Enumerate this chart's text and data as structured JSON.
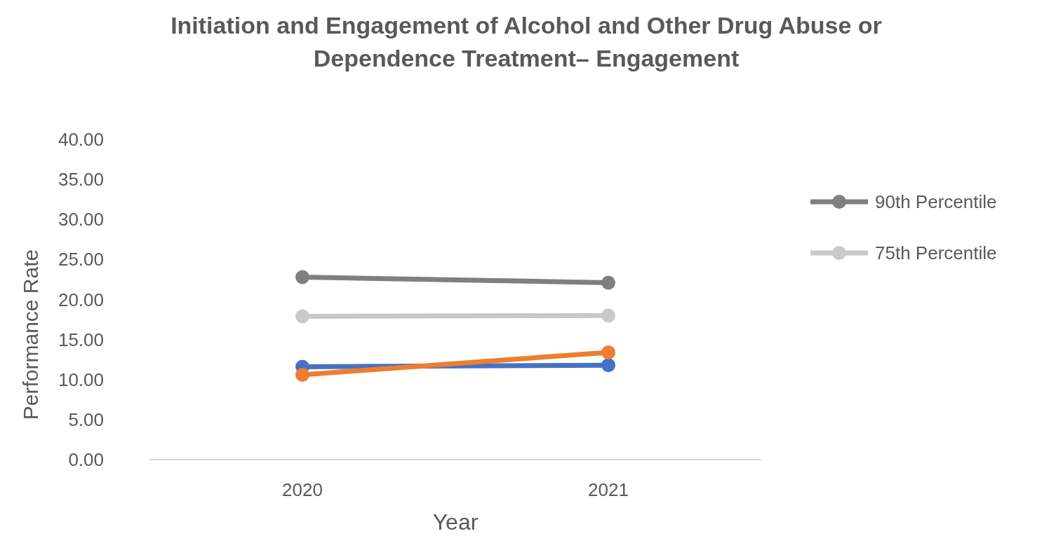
{
  "chart_data": {
    "type": "line",
    "title": "Initiation and Engagement of Alcohol and Other Drug Abuse or Dependence Treatment– Engagement",
    "xlabel": "Year",
    "ylabel": "Performance Rate",
    "categories": [
      "2020",
      "2021"
    ],
    "series": [
      {
        "color": "#4472c4",
        "values": [
          11.6,
          11.8
        ]
      },
      {
        "color": "#ed7d31",
        "values": [
          10.6,
          13.4
        ]
      },
      {
        "name": "90th Percentile",
        "color": "#7f7f7f",
        "values": [
          22.8,
          22.1
        ]
      },
      {
        "name": "75th Percentile",
        "color": "#c9c9c9",
        "values": [
          17.9,
          18.0
        ]
      }
    ],
    "ylim": [
      0,
      40
    ],
    "yticks": [
      {
        "value": 0,
        "label": "0.00"
      },
      {
        "value": 5,
        "label": "5.00"
      },
      {
        "value": 10,
        "label": "10.00"
      },
      {
        "value": 15,
        "label": "15.00"
      },
      {
        "value": 20,
        "label": "20.00"
      },
      {
        "value": 25,
        "label": "25.00"
      },
      {
        "value": 30,
        "label": "30.00"
      },
      {
        "value": 35,
        "label": "35.00"
      },
      {
        "value": 40,
        "label": "40.00"
      }
    ],
    "grid": false,
    "legend": "right",
    "marker": "circle",
    "line_style": "solid"
  }
}
